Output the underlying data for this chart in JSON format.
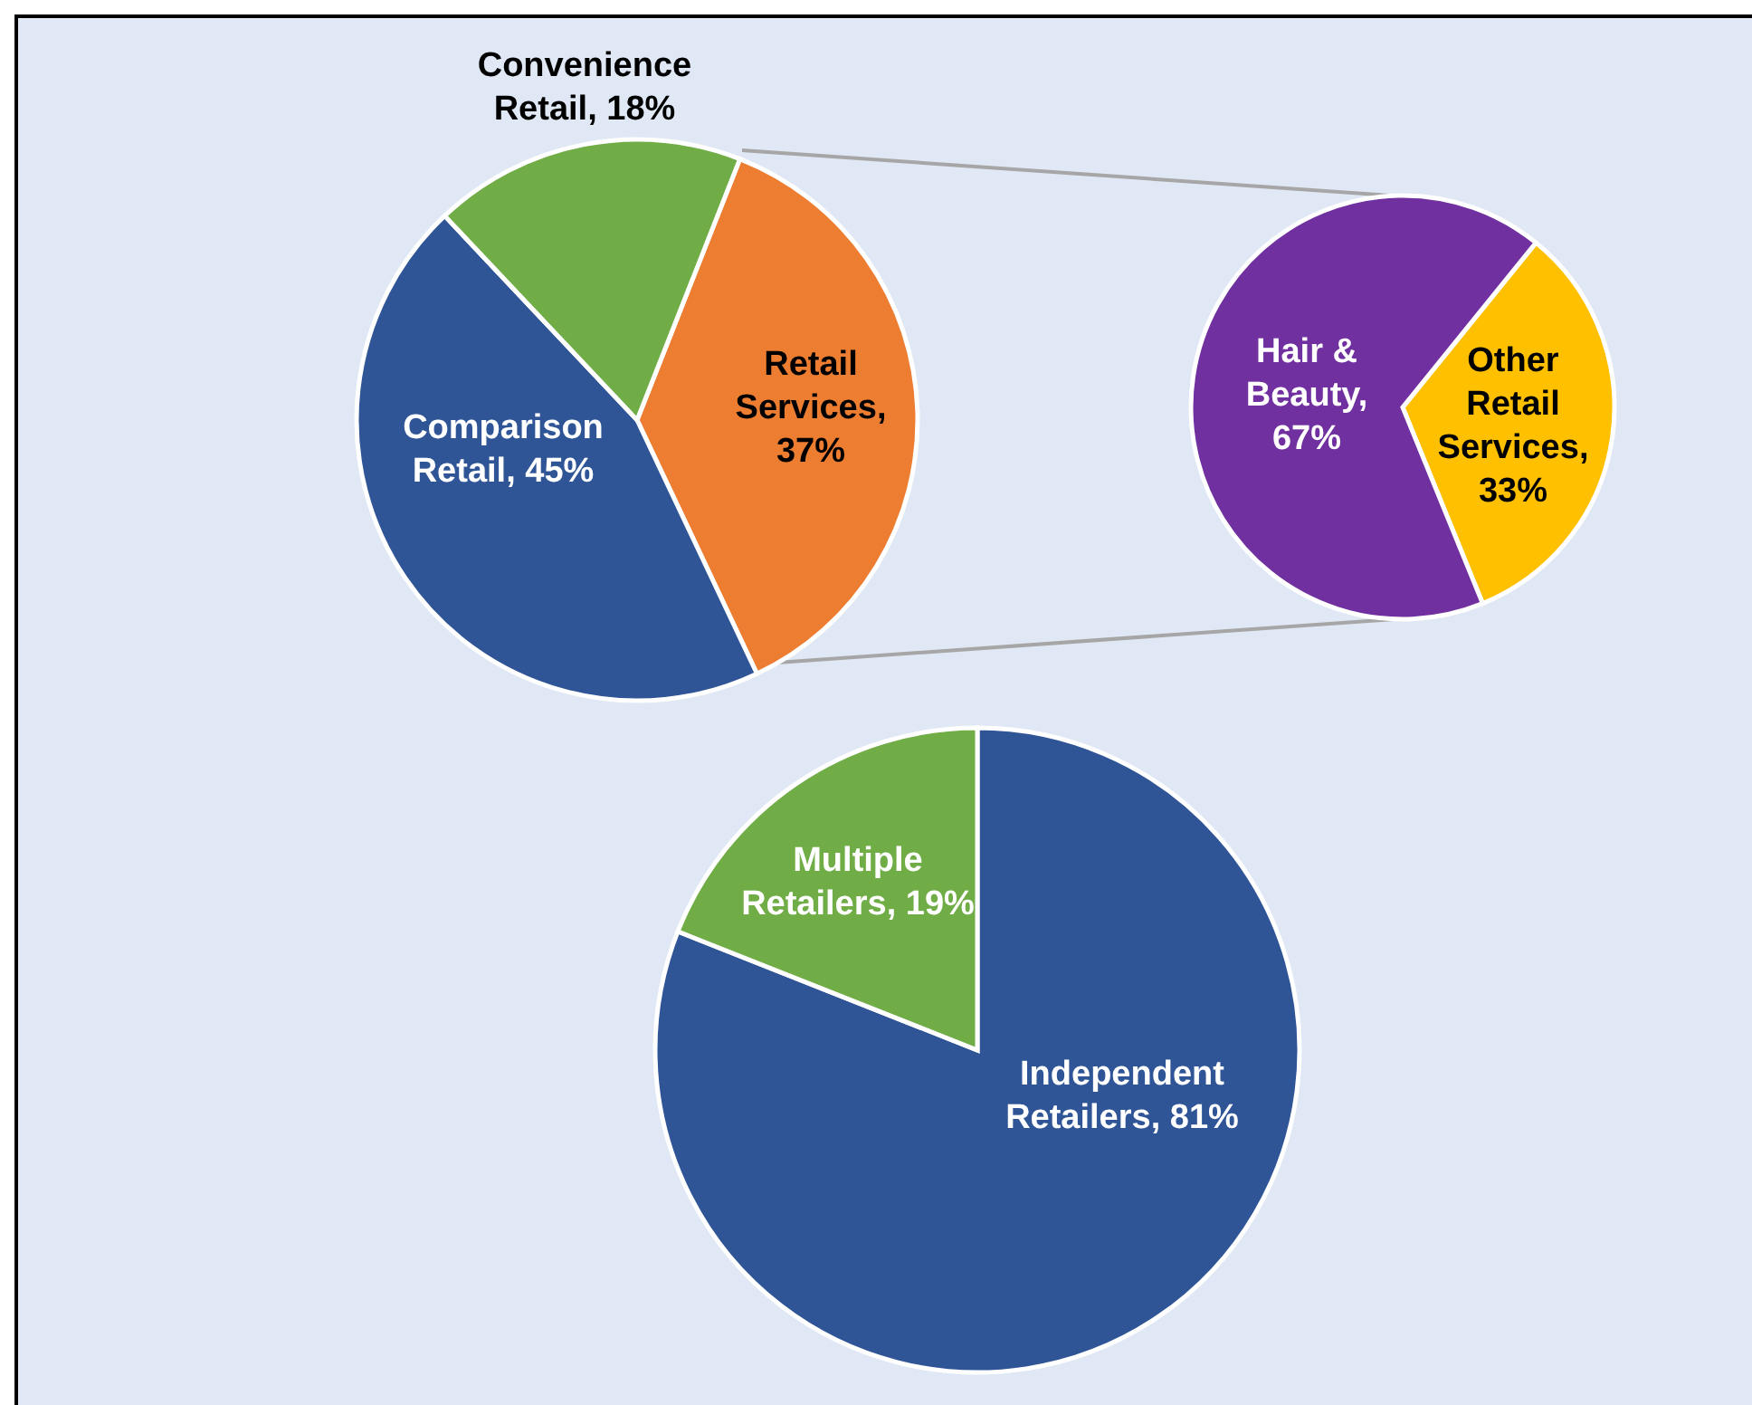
{
  "chart_data": [
    {
      "type": "pie",
      "categories": [
        "Retail Services",
        "Comparison Retail",
        "Convenience Retail"
      ],
      "values": [
        37,
        45,
        18
      ],
      "colors": [
        "#ed7d31",
        "#2f5597",
        "#70ad47"
      ],
      "value_labels": [
        ", 37%",
        ", 45%",
        ", 18%"
      ]
    },
    {
      "type": "pie",
      "categories": [
        "Other Retail Services",
        "Hair & Beauty"
      ],
      "values": [
        33,
        67
      ],
      "colors": [
        "#ffc000",
        "#7030a0"
      ],
      "value_labels": [
        ", 33%",
        ", 67%"
      ]
    },
    {
      "type": "pie",
      "categories": [
        "Independent Retailers",
        "Multiple Retailers"
      ],
      "values": [
        81,
        19
      ],
      "colors": [
        "#2f5597",
        "#70ad47"
      ],
      "value_labels": [
        ", 81%",
        ", 19%"
      ]
    }
  ]
}
